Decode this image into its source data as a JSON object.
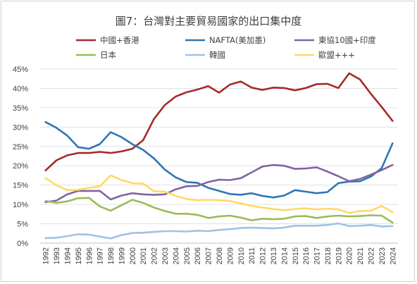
{
  "chart_data": {
    "type": "line",
    "title": "圖7：台灣對主要貿易國家的出口集中度",
    "xlabel": "",
    "ylabel": "",
    "ylim": [
      0,
      45
    ],
    "yticks": [
      "0%",
      "5%",
      "10%",
      "15%",
      "20%",
      "25%",
      "30%",
      "35%",
      "40%",
      "45%"
    ],
    "x": [
      "1992",
      "1993",
      "1994",
      "1995",
      "1996",
      "1997",
      "1998",
      "1999",
      "2000",
      "2001",
      "2002",
      "2003",
      "2004",
      "2005",
      "2006",
      "2007",
      "2008",
      "2009",
      "2010",
      "2011",
      "2012",
      "2013",
      "2014",
      "2015",
      "2016",
      "2017",
      "2018",
      "2019",
      "2020",
      "2021",
      "2022",
      "2023",
      "2024"
    ],
    "grid": true,
    "legend_position": "top",
    "series": [
      {
        "name": "中國+香港",
        "color": "#a52a2a",
        "values": [
          18.8,
          21.4,
          22.7,
          23.3,
          23.3,
          23.6,
          23.3,
          23.7,
          24.4,
          26.6,
          32.1,
          35.7,
          37.9,
          39.0,
          39.7,
          40.6,
          38.9,
          41.0,
          41.8,
          40.2,
          39.6,
          40.2,
          40.1,
          39.5,
          40.1,
          41.1,
          41.2,
          40.1,
          43.9,
          42.3,
          38.6,
          35.2,
          31.6
        ]
      },
      {
        "name": "NAFTA(美加墨)",
        "color": "#2e75b6",
        "values": [
          31.3,
          29.8,
          27.8,
          24.8,
          24.4,
          25.6,
          28.7,
          27.4,
          25.6,
          24.1,
          21.9,
          19.0,
          17.0,
          15.8,
          15.6,
          14.3,
          13.5,
          12.7,
          12.5,
          12.9,
          12.2,
          11.8,
          12.3,
          13.7,
          13.3,
          12.9,
          13.2,
          15.5,
          15.9,
          16.0,
          17.2,
          19.4,
          25.8
        ]
      },
      {
        "name": "東協10國+印度",
        "color": "#8064a2",
        "values": [
          10.6,
          11.0,
          12.6,
          13.5,
          13.5,
          13.5,
          11.3,
          12.3,
          12.9,
          12.6,
          12.5,
          12.6,
          13.9,
          14.7,
          14.8,
          15.8,
          16.4,
          16.3,
          16.8,
          18.3,
          19.8,
          20.2,
          20.0,
          19.2,
          19.3,
          19.6,
          18.5,
          17.3,
          16.0,
          16.6,
          17.7,
          18.9,
          20.2
        ]
      },
      {
        "name": "日本",
        "color": "#9bbb59",
        "values": [
          10.9,
          10.4,
          10.8,
          11.6,
          11.7,
          9.5,
          8.4,
          9.8,
          11.2,
          10.4,
          9.2,
          8.3,
          7.6,
          7.6,
          7.3,
          6.5,
          6.9,
          7.1,
          6.6,
          5.9,
          6.3,
          6.2,
          6.3,
          6.9,
          7.0,
          6.5,
          6.9,
          7.1,
          6.9,
          7.0,
          7.2,
          7.1,
          5.3
        ]
      },
      {
        "name": "韓國",
        "color": "#9dc3e6",
        "values": [
          1.3,
          1.4,
          1.8,
          2.3,
          2.2,
          1.7,
          1.2,
          2.1,
          2.6,
          2.7,
          2.9,
          3.1,
          3.1,
          3.0,
          3.2,
          3.1,
          3.4,
          3.6,
          3.9,
          4.0,
          3.9,
          3.8,
          4.0,
          4.5,
          4.5,
          4.5,
          4.7,
          5.1,
          4.4,
          4.5,
          4.7,
          4.3,
          4.4
        ]
      },
      {
        "name": "歐盟+++",
        "color": "#ffd966",
        "values": [
          16.8,
          15.0,
          13.7,
          13.8,
          14.3,
          14.7,
          17.5,
          16.3,
          15.5,
          15.4,
          13.4,
          13.3,
          12.2,
          11.4,
          11.1,
          11.2,
          11.1,
          10.9,
          10.3,
          9.6,
          9.2,
          8.8,
          8.5,
          8.8,
          9.0,
          8.7,
          8.9,
          8.7,
          7.8,
          8.3,
          8.4,
          9.6,
          8.0
        ]
      }
    ]
  }
}
